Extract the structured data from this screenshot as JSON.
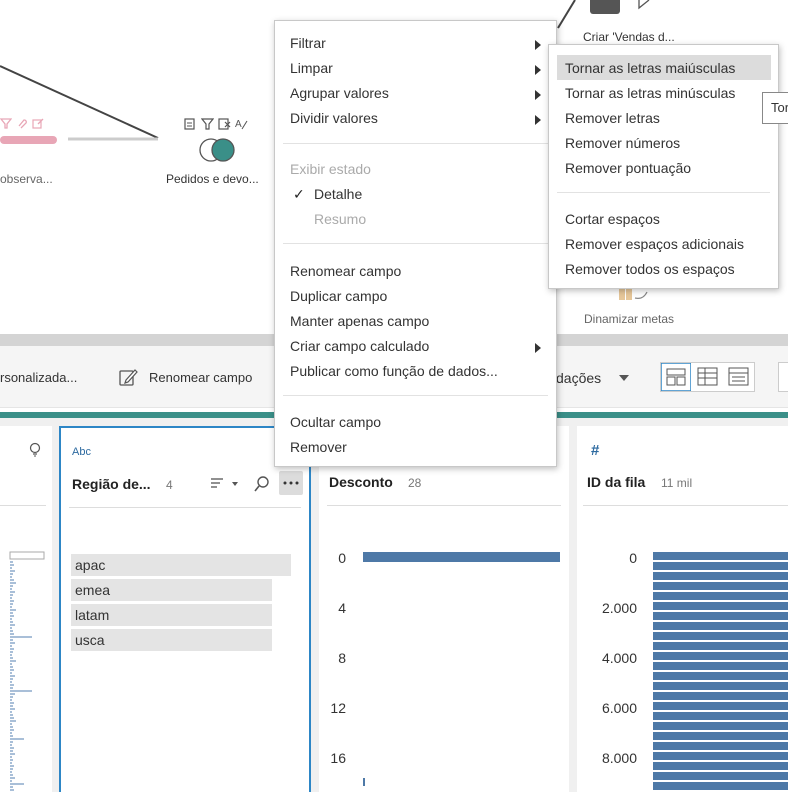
{
  "flow": {
    "node_left_label": "observa...",
    "node_join_label": "Pedidos e devo...",
    "node_top_label": "Criar 'Vendas d...",
    "node_pivot_label": "Dinamizar metas"
  },
  "toolbar": {
    "custom_label": "rsonalizada...",
    "rename_label": "Renomear campo",
    "recs_label": "dações"
  },
  "cards": {
    "left": {},
    "region": {
      "type_label": "Abc",
      "title": "Região de...",
      "count": "4",
      "values": [
        "apac",
        "emea",
        "latam",
        "usca"
      ]
    },
    "discount": {
      "title": "Desconto",
      "count": "28",
      "ticks": [
        "0",
        "4",
        "8",
        "12",
        "16"
      ]
    },
    "rowid": {
      "type_label": "#",
      "title": "ID da fila",
      "count": "11 mil",
      "ticks": [
        "0",
        "2.000",
        "4.000",
        "6.000",
        "8.000"
      ]
    }
  },
  "menu": {
    "filter": "Filtrar",
    "clean": "Limpar",
    "group": "Agrupar valores",
    "split": "Dividir valores",
    "show_state": "Exibir estado",
    "detail": "Detalhe",
    "summary": "Resumo",
    "rename": "Renomear campo",
    "duplicate": "Duplicar campo",
    "keep_only": "Manter apenas campo",
    "calc": "Criar campo calculado",
    "publish": "Publicar como função de dados...",
    "hide": "Ocultar campo",
    "remove": "Remover",
    "check_mark": "✓"
  },
  "submenu": {
    "uppercase": "Tornar as letras maiúsculas",
    "lowercase": "Tornar as letras minúsculas",
    "remove_letters": "Remover letras",
    "remove_numbers": "Remover números",
    "remove_punct": "Remover pontuação",
    "trim": "Cortar espaços",
    "remove_extra": "Remover espaços adicionais",
    "remove_all": "Remover todos os espaços"
  },
  "tooltip": {
    "text": "Tor"
  },
  "colors": {
    "teal": "#3a8f88",
    "bar_blue": "#4e79a7",
    "selection_blue": "#2d86c6",
    "highlight": "#dcdcdc"
  }
}
